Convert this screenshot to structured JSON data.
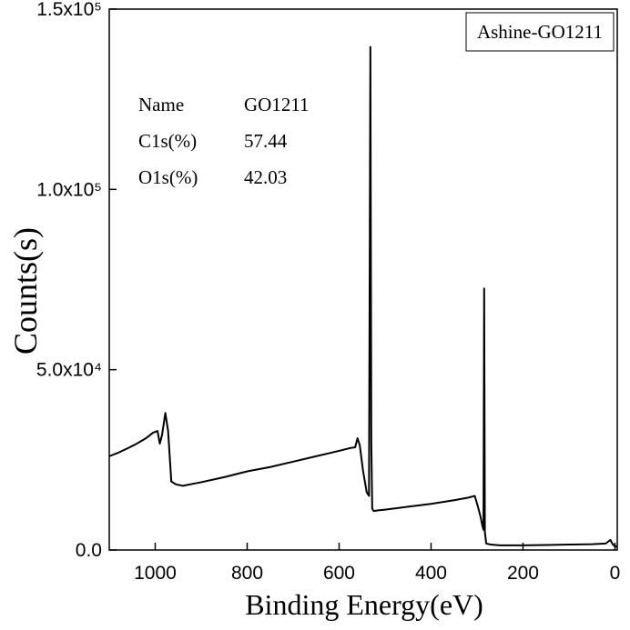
{
  "chart_data": {
    "type": "line",
    "x_label": "Binding Energy(eV)",
    "y_label": "Counts(s)",
    "legend_box": "Ashine-GO1211",
    "info_table": [
      [
        "Name",
        "GO1211"
      ],
      [
        "C1s(%)",
        57.44
      ],
      [
        "O1s(%)",
        42.03
      ]
    ],
    "xlim": [
      1100,
      -5
    ],
    "ylim": [
      0,
      150000
    ],
    "xticks": [
      1000,
      800,
      600,
      400,
      200,
      0
    ],
    "yticks": [
      {
        "value": 0,
        "label": "0.0"
      },
      {
        "value": 50000,
        "label": "5.0x10⁴"
      },
      {
        "value": 100000,
        "label": "1.0x10⁵"
      },
      {
        "value": 150000,
        "label": "1.5x10⁵"
      }
    ],
    "series": [
      {
        "color": "#000000",
        "x": [
          1100,
          1080,
          1060,
          1040,
          1020,
          1005,
          995,
          990,
          985,
          978,
          972,
          965,
          955,
          940,
          900,
          850,
          800,
          750,
          700,
          650,
          600,
          575,
          565,
          560,
          555,
          548,
          540,
          535,
          532,
          530,
          528,
          525,
          515,
          500,
          450,
          400,
          350,
          320,
          305,
          298,
          292,
          288,
          286,
          284.5,
          283,
          280,
          270,
          250,
          200,
          150,
          100,
          50,
          20,
          10,
          5,
          0,
          -5
        ],
        "values": [
          26000,
          27000,
          28200,
          29500,
          31000,
          32500,
          33000,
          29500,
          32000,
          38000,
          33000,
          19000,
          18200,
          17800,
          18800,
          20200,
          21800,
          23000,
          24500,
          26000,
          27500,
          28300,
          28500,
          31000,
          29000,
          22000,
          16000,
          15000,
          139500,
          30000,
          11500,
          10800,
          11000,
          11200,
          12000,
          12800,
          13800,
          14500,
          15000,
          12000,
          9000,
          6500,
          5600,
          72500,
          5000,
          1800,
          1500,
          1300,
          1300,
          1400,
          1500,
          1600,
          1800,
          2800,
          1600,
          1000,
          900
        ]
      }
    ],
    "grid": false
  }
}
